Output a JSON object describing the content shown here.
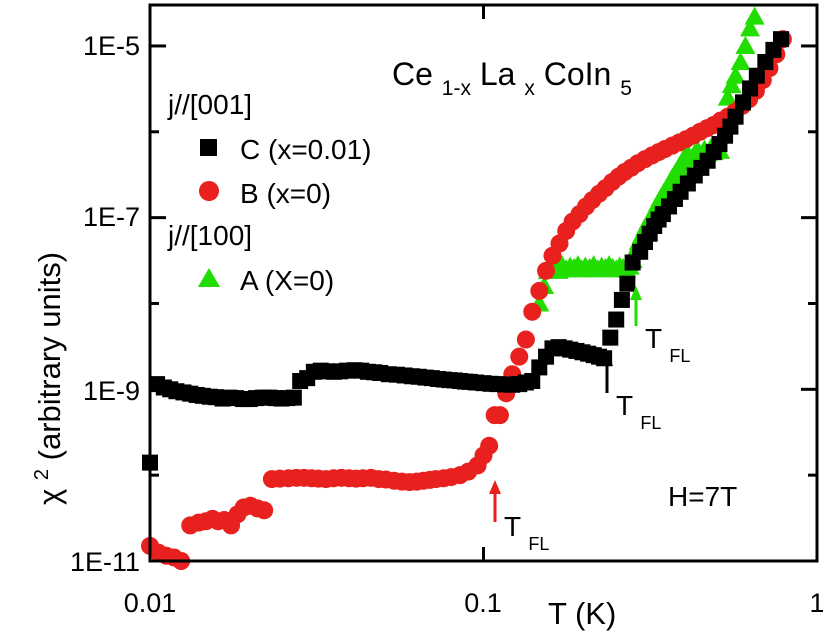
{
  "chart_data": {
    "type": "scatter",
    "title": "Ce1-xLaxCoIn5",
    "title_parts": {
      "base1": "Ce",
      "sub1": "1-x",
      "base2": "La",
      "sub2": "x",
      "base3": "CoIn",
      "sub3": "5"
    },
    "xlabel": "T (K)",
    "ylabel_symbol": "χ",
    "ylabel_sup": "2",
    "ylabel_rest": " (arbitrary units)",
    "x_scale": "log",
    "y_scale": "log",
    "xlim": [
      0.01,
      1
    ],
    "ylim": [
      1e-11,
      3e-05
    ],
    "x_ticks": [
      "0.01",
      "0.1",
      "1"
    ],
    "y_ticks": [
      "1E-11",
      "1E-9",
      "1E-7",
      "1E-5"
    ],
    "grid": false,
    "annotation_field": "H=7T",
    "legend": {
      "placement": "top-left",
      "group1_label": "j//[001]",
      "group2_label": "j//[100]"
    },
    "markers": [
      {
        "label": "T",
        "sub": "FL",
        "x": 0.107,
        "color": "#e8211e"
      },
      {
        "label": "T",
        "sub": "FL",
        "x": 0.225,
        "color": "#000000"
      },
      {
        "label": "T",
        "sub": "FL",
        "x": 0.275,
        "color": "#22dd00"
      }
    ],
    "series": [
      {
        "name": "C (x=0.01)",
        "marker": "square",
        "color": "#000000",
        "x": [
          0.01,
          0.0105,
          0.011,
          0.0115,
          0.012,
          0.0126,
          0.0132,
          0.0138,
          0.0144,
          0.0151,
          0.0158,
          0.0165,
          0.0173,
          0.0181,
          0.019,
          0.0199,
          0.0208,
          0.0218,
          0.0228,
          0.0238,
          0.0248,
          0.0258,
          0.027,
          0.0282,
          0.0296,
          0.031,
          0.0325,
          0.034,
          0.0356,
          0.0372,
          0.039,
          0.041,
          0.043,
          0.045,
          0.047,
          0.049,
          0.052,
          0.055,
          0.058,
          0.061,
          0.064,
          0.067,
          0.07,
          0.073,
          0.076,
          0.079,
          0.082,
          0.085,
          0.088,
          0.091,
          0.095,
          0.1,
          0.105,
          0.11,
          0.116,
          0.122,
          0.128,
          0.134,
          0.14,
          0.147,
          0.154,
          0.161,
          0.168,
          0.175,
          0.182,
          0.19,
          0.198,
          0.206,
          0.214,
          0.222,
          0.23,
          0.24,
          0.25,
          0.26,
          0.27,
          0.28,
          0.295,
          0.305,
          0.315,
          0.325,
          0.335,
          0.345,
          0.36,
          0.375,
          0.39,
          0.41,
          0.43,
          0.45,
          0.47,
          0.49,
          0.51,
          0.53,
          0.55,
          0.57,
          0.6,
          0.63,
          0.66,
          0.7,
          0.74,
          0.78
        ],
        "y": [
          1.4e-10,
          1.15e-09,
          1.05e-09,
          1e-09,
          9.5e-10,
          9.2e-10,
          8.9e-10,
          8.6e-10,
          8.4e-10,
          8.2e-10,
          8.1e-10,
          7.8e-10,
          8e-10,
          7.9e-10,
          7.7e-10,
          7.7e-10,
          7.9e-10,
          8e-10,
          8e-10,
          7.9e-10,
          7.8e-10,
          7.9e-10,
          8e-10,
          1.25e-09,
          1.35e-09,
          1.6e-09,
          1.65e-09,
          1.62e-09,
          1.6e-09,
          1.62e-09,
          1.65e-09,
          1.67e-09,
          1.65e-09,
          1.6e-09,
          1.58e-09,
          1.55e-09,
          1.5e-09,
          1.48e-09,
          1.45e-09,
          1.42e-09,
          1.4e-09,
          1.37e-09,
          1.35e-09,
          1.32e-09,
          1.3e-09,
          1.28e-09,
          1.27e-09,
          1.25e-09,
          1.23e-09,
          1.22e-09,
          1.2e-09,
          1.18e-09,
          1.16e-09,
          1.15e-09,
          1.14e-09,
          1.13e-09,
          1.15e-09,
          1.2e-09,
          1.25e-09,
          1.8e-09,
          2.4e-09,
          3e-09,
          3.1e-09,
          3e-09,
          2.9e-09,
          2.8e-09,
          2.7e-09,
          2.6e-09,
          2.5e-09,
          2.4e-09,
          2.3e-09,
          4e-09,
          6.5e-09,
          1.1e-08,
          1.7e-08,
          3e-08,
          4e-08,
          5.2e-08,
          6.5e-08,
          8e-08,
          9.5e-08,
          1.1e-07,
          1.35e-07,
          1.65e-07,
          2e-07,
          2.5e-07,
          3.1e-07,
          3.8e-07,
          4.6e-07,
          5.8e-07,
          7.2e-07,
          9e-07,
          1.15e-06,
          1.5e-06,
          2.2e-06,
          3.2e-06,
          4.5e-06,
          6.5e-06,
          9e-06,
          1.2e-05
        ]
      },
      {
        "name": "B (x=0)",
        "marker": "circle",
        "color": "#e8211e",
        "x": [
          0.01,
          0.0106,
          0.0112,
          0.0118,
          0.0124,
          0.0132,
          0.014,
          0.0147,
          0.0154,
          0.016,
          0.0167,
          0.0175,
          0.0183,
          0.0191,
          0.02,
          0.021,
          0.022,
          0.0232,
          0.0245,
          0.026,
          0.0275,
          0.029,
          0.0305,
          0.032,
          0.0337,
          0.0355,
          0.0375,
          0.0395,
          0.0415,
          0.0435,
          0.046,
          0.0485,
          0.051,
          0.054,
          0.057,
          0.06,
          0.063,
          0.066,
          0.069,
          0.072,
          0.076,
          0.08,
          0.085,
          0.09,
          0.096,
          0.1,
          0.104,
          0.108,
          0.112,
          0.117,
          0.122,
          0.128,
          0.134,
          0.14,
          0.147,
          0.154,
          0.161,
          0.169,
          0.177,
          0.185,
          0.194,
          0.203,
          0.212,
          0.222,
          0.232,
          0.243,
          0.254,
          0.265,
          0.277,
          0.29,
          0.305,
          0.32,
          0.335,
          0.35,
          0.368,
          0.386,
          0.405,
          0.425,
          0.446,
          0.468,
          0.49,
          0.514,
          0.54,
          0.567,
          0.596,
          0.626,
          0.656,
          0.688,
          0.72,
          0.755,
          0.79
        ],
        "y": [
          1.5e-11,
          1.25e-11,
          1.15e-11,
          1.1e-11,
          1e-11,
          2.6e-11,
          2.8e-11,
          2.9e-11,
          3.1e-11,
          2.9e-11,
          3e-11,
          2.6e-11,
          3.5e-11,
          4.2e-11,
          4.4e-11,
          4.1e-11,
          3.9e-11,
          9e-11,
          9.1e-11,
          9.2e-11,
          9.3e-11,
          9.3e-11,
          9.2e-11,
          9.1e-11,
          9e-11,
          9.2e-11,
          9.3e-11,
          9.2e-11,
          9.1e-11,
          9.2e-11,
          9.3e-11,
          9e-11,
          8.9e-11,
          8.6e-11,
          8.4e-11,
          8.3e-11,
          8.4e-11,
          8.6e-11,
          8.8e-11,
          9e-11,
          9.2e-11,
          9.5e-11,
          1e-10,
          1.1e-10,
          1.3e-10,
          1.7e-10,
          2.2e-10,
          5e-10,
          5e-10,
          9e-10,
          1.5e-09,
          2.4e-09,
          3.8e-09,
          8e-09,
          1.4e-08,
          2.4e-08,
          3.6e-08,
          5e-08,
          7e-08,
          9e-08,
          1.1e-07,
          1.35e-07,
          1.6e-07,
          1.9e-07,
          2.2e-07,
          2.6e-07,
          3e-07,
          3.4e-07,
          3.8e-07,
          4.3e-07,
          4.8e-07,
          5.3e-07,
          5.8e-07,
          6.3e-07,
          6.9e-07,
          7.5e-07,
          8.2e-07,
          9e-07,
          1e-06,
          1.1e-06,
          1.2e-06,
          1.35e-06,
          1.5e-06,
          1.7e-06,
          2e-06,
          2.4e-06,
          3e-06,
          4e-06,
          5.5e-06,
          8e-06,
          1.2e-05
        ]
      },
      {
        "name": "A (X=0)",
        "marker": "triangle",
        "color": "#22dd00",
        "x": [
          0.147,
          0.152,
          0.156,
          0.16,
          0.164,
          0.168,
          0.172,
          0.177,
          0.182,
          0.187,
          0.192,
          0.197,
          0.202,
          0.208,
          0.214,
          0.22,
          0.226,
          0.232,
          0.238,
          0.244,
          0.25,
          0.256,
          0.262,
          0.268,
          0.274,
          0.28,
          0.286,
          0.292,
          0.298,
          0.305,
          0.312,
          0.319,
          0.326,
          0.333,
          0.34,
          0.347,
          0.354,
          0.361,
          0.368,
          0.376,
          0.384,
          0.392,
          0.4,
          0.41,
          0.42,
          0.43,
          0.44,
          0.45,
          0.46,
          0.47,
          0.48,
          0.49,
          0.5,
          0.512,
          0.525,
          0.54,
          0.555,
          0.57,
          0.59,
          0.61,
          0.63,
          0.65
        ],
        "y": [
          1e-08,
          1.6e-08,
          2.4e-08,
          2.7e-08,
          2.6e-08,
          2.4e-08,
          2.8e-08,
          2.5e-08,
          2.7e-08,
          2.6e-08,
          2.8e-08,
          2.5e-08,
          2.7e-08,
          2.6e-08,
          2.8e-08,
          2.5e-08,
          2.7e-08,
          2.6e-08,
          2.8e-08,
          2.6e-08,
          2.5e-08,
          2.7e-08,
          2.6e-08,
          2.5e-08,
          2.7e-08,
          3.2e-08,
          4.2e-08,
          5.2e-08,
          6.2e-08,
          7.5e-08,
          9e-08,
          1.05e-07,
          1.2e-07,
          1.45e-07,
          1.7e-07,
          1.95e-07,
          2.2e-07,
          2.5e-07,
          2.9e-07,
          3.3e-07,
          3.8e-07,
          4.3e-07,
          5e-07,
          5.5e-07,
          4.8e-07,
          5.6e-07,
          6e-07,
          5.4e-07,
          6.2e-07,
          5.6e-07,
          6.4e-07,
          5.8e-07,
          6.6e-07,
          6e-07,
          1.2e-06,
          2.5e-06,
          3.5e-06,
          4.5e-06,
          6.5e-06,
          1e-05,
          1.6e-05,
          2.2e-05
        ]
      }
    ]
  }
}
